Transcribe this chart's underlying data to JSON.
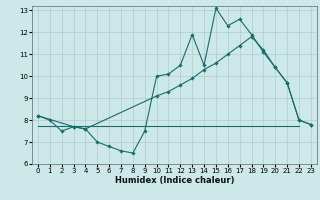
{
  "xlabel": "Humidex (Indice chaleur)",
  "xlim": [
    -0.5,
    23.5
  ],
  "ylim": [
    6,
    13.2
  ],
  "xticks": [
    0,
    1,
    2,
    3,
    4,
    5,
    6,
    7,
    8,
    9,
    10,
    11,
    12,
    13,
    14,
    15,
    16,
    17,
    18,
    19,
    20,
    21,
    22,
    23
  ],
  "yticks": [
    6,
    7,
    8,
    9,
    10,
    11,
    12,
    13
  ],
  "bg_color": "#cce8e8",
  "grid_color": "#b0cccc",
  "line_color": "#1a6b6b",
  "line1_x": [
    0,
    1,
    2,
    3,
    4,
    5,
    6,
    7,
    8,
    9,
    10,
    11,
    12,
    13,
    14,
    15,
    16,
    17,
    18,
    19,
    20,
    21,
    22,
    23
  ],
  "line1_y": [
    8.2,
    8.0,
    7.5,
    7.7,
    7.6,
    7.0,
    6.8,
    6.6,
    6.5,
    7.5,
    10.0,
    10.1,
    10.5,
    11.9,
    10.5,
    13.1,
    12.3,
    12.6,
    11.9,
    11.1,
    10.4,
    9.7,
    8.0,
    7.8
  ],
  "line2_x": [
    0,
    3,
    4,
    10,
    11,
    12,
    13,
    14,
    15,
    16,
    17,
    18,
    19,
    20,
    21,
    22,
    23
  ],
  "line2_y": [
    8.2,
    7.7,
    7.6,
    9.1,
    9.3,
    9.6,
    9.9,
    10.3,
    10.6,
    11.0,
    11.4,
    11.8,
    11.2,
    10.4,
    9.7,
    8.0,
    7.8
  ],
  "line3_x": [
    0,
    22
  ],
  "line3_y": [
    7.75,
    7.75
  ],
  "tick_fontsize": 5,
  "xlabel_fontsize": 6,
  "marker_size": 1.8,
  "line_width": 0.8
}
